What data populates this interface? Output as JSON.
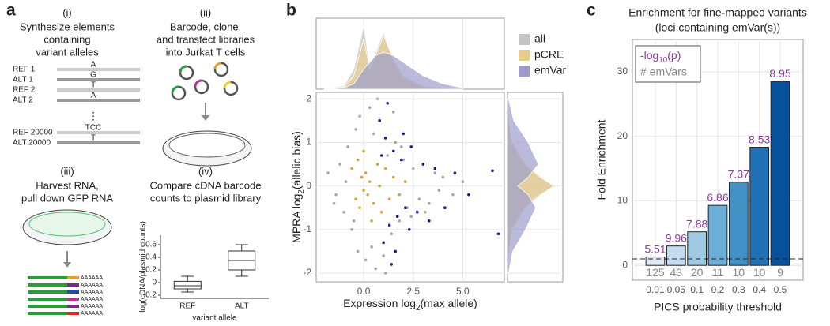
{
  "panel_labels": [
    "a",
    "b",
    "c"
  ],
  "panel_a": {
    "steps": [
      {
        "number": "(i)",
        "lines": [
          "Synthesize elements",
          "containing",
          "variant alleles"
        ]
      },
      {
        "number": "(ii)",
        "lines": [
          "Barcode, clone,",
          "and transfect libraries",
          "into Jurkat T cells"
        ]
      },
      {
        "number": "(iii)",
        "lines": [
          "Harvest RNA,",
          "pull down GFP RNA"
        ]
      },
      {
        "number": "(iv)",
        "lines": [
          "Compare cDNA barcode",
          "counts to plasmid library"
        ]
      }
    ],
    "sequences": [
      {
        "label": "REF 1",
        "base": "A"
      },
      {
        "label": "ALT 1",
        "base": "G"
      },
      {
        "label": "REF 2",
        "base": "T"
      },
      {
        "label": "ALT 2",
        "base": "A"
      },
      {
        "label": "REF 20000",
        "base": "TCC"
      },
      {
        "label": "ALT 20000",
        "base": "T"
      }
    ],
    "ellipsis": "⋮",
    "poly_a": "AAAAAA"
  },
  "chart_data": [
    {
      "type": "box",
      "ylabel": "log(cDNA/plasmid counts)",
      "xlabel": "variant allele",
      "categories": [
        "REF",
        "ALT"
      ],
      "boxes": [
        {
          "min": -0.15,
          "q1": -0.1,
          "median": -0.05,
          "q3": 0.02,
          "max": 0.1
        },
        {
          "min": 0.1,
          "q1": 0.2,
          "median": 0.35,
          "q3": 0.5,
          "max": 0.6
        }
      ],
      "ylim": [
        -0.25,
        0.75
      ],
      "yticks": [
        -0.2,
        0,
        0.2,
        0.4,
        0.6
      ]
    },
    {
      "type": "scatter",
      "xlabel": {
        "main": "Expression log",
        "sub": "2",
        "rest": "(max allele)"
      },
      "ylabel": {
        "main": "MPRA log",
        "sub": "2",
        "rest": "(allelic bias)"
      },
      "xlim": [
        -2.4,
        7.1
      ],
      "ylim": [
        -2.2,
        2.15
      ],
      "xticks": [
        {
          "value": 0,
          "label": "0.0"
        },
        2.5,
        {
          "value": 5,
          "label": "5.0"
        }
      ],
      "yticks": [
        -2,
        -1,
        0,
        1,
        2
      ],
      "grid": true,
      "density_lim": [
        0,
        1
      ],
      "top_density_x": [
        -2,
        -1,
        -0.5,
        0,
        0.3,
        0.6,
        1,
        1.5,
        2,
        3,
        4,
        5
      ],
      "side_density_y": [
        -2,
        -1.5,
        -1,
        -0.5,
        -0.2,
        0,
        0.2,
        0.5,
        1,
        1.5,
        2
      ],
      "series": [
        {
          "name": "all",
          "color": "#a8a8a8",
          "fill": "#c4c4c4",
          "x": [
            -1.8,
            -1.5,
            -1.2,
            -1.0,
            -0.8,
            -0.6,
            -0.4,
            -0.3,
            -0.2,
            0.1,
            0.3,
            0.4,
            0.5,
            0.6,
            0.8,
            1.0,
            1.2,
            1.4,
            1.6,
            1.8,
            2.0,
            2.2,
            2.5,
            2.8,
            3.0,
            3.3,
            3.6,
            4.0,
            4.5,
            5.0,
            -1.4,
            -0.9,
            -0.5,
            0.7,
            1.1,
            1.5,
            1.9,
            2.4,
            3.1,
            3.8
          ],
          "values": [
            0.3,
            -0.4,
            0.5,
            -0.6,
            0.9,
            -1.0,
            1.3,
            -1.5,
            1.6,
            -1.7,
            1.8,
            -1.4,
            1.2,
            -1.9,
            1.5,
            -1.6,
            0.7,
            -1.1,
            1.0,
            -0.8,
            0.6,
            -0.5,
            0.4,
            -0.3,
            0.5,
            -0.4,
            0.3,
            0.2,
            -0.2,
            0.1,
            -0.2,
            0.1,
            -0.8,
            2.0,
            -2.0,
            1.7,
            0.9,
            -0.7,
            -0.6,
            -0.1
          ],
          "top_density": [
            0,
            0.05,
            0.3,
            0.95,
            0.35,
            0.55,
            0.85,
            0.4,
            0.15,
            0.05,
            0.02,
            0
          ],
          "side_density": [
            0,
            0.02,
            0.08,
            0.3,
            0.6,
            0.95,
            0.6,
            0.3,
            0.08,
            0.02,
            0
          ]
        },
        {
          "name": "pCRE",
          "color": "#d6a834",
          "fill": "#e8cc8a",
          "x": [
            -0.6,
            -0.4,
            -0.3,
            -0.2,
            -0.1,
            0.0,
            0.1,
            0.2,
            0.3,
            0.5,
            0.7,
            0.9,
            1.1,
            1.3,
            1.5,
            1.8,
            2.1,
            0.0,
            0.4,
            0.8
          ],
          "values": [
            0.4,
            -0.3,
            0.6,
            -0.5,
            0.2,
            -0.1,
            0.3,
            -0.2,
            0.1,
            -0.4,
            0.5,
            -0.6,
            0.4,
            -0.3,
            0.2,
            -0.2,
            0.1,
            0.8,
            -0.8,
            0.0
          ],
          "top_density": [
            0,
            0.03,
            0.2,
            0.75,
            0.3,
            0.5,
            0.8,
            0.45,
            0.2,
            0.05,
            0.02,
            0
          ],
          "side_density": [
            0,
            0.03,
            0.1,
            0.35,
            0.65,
            0.9,
            0.65,
            0.35,
            0.1,
            0.03,
            0
          ]
        },
        {
          "name": "emVar",
          "color": "#1c1c8a",
          "fill": "#9c9ccc",
          "x": [
            0.8,
            1.0,
            1.1,
            1.3,
            1.5,
            1.7,
            1.9,
            2.1,
            2.4,
            2.7,
            3.0,
            3.3,
            3.6,
            4.1,
            4.6,
            5.3,
            6.5,
            6.8,
            1.2,
            1.6,
            2.0,
            2.3,
            0.9,
            1.4
          ],
          "values": [
            1.5,
            -1.3,
            1.1,
            -0.9,
            0.8,
            -0.7,
            0.6,
            -0.5,
            0.9,
            -0.6,
            0.5,
            -0.8,
            0.4,
            -0.5,
            0.3,
            -0.2,
            0.35,
            -1.1,
            1.9,
            -1.5,
            1.2,
            -1.0,
            0.7,
            -1.8
          ],
          "top_density": [
            0,
            0.02,
            0.08,
            0.3,
            0.4,
            0.5,
            0.55,
            0.5,
            0.4,
            0.2,
            0.08,
            0.02
          ],
          "side_density": [
            0.02,
            0.1,
            0.35,
            0.55,
            0.4,
            0.2,
            0.4,
            0.6,
            0.4,
            0.12,
            0.02
          ]
        }
      ]
    },
    {
      "type": "bar",
      "title": [
        "Enrichment for fine-mapped variants",
        "(loci containing emVar(s))"
      ],
      "ylabel": "Fold Enrichment",
      "xlabel": "PICS probability threshold",
      "categories": [
        "0.01",
        "0.05",
        "0.1",
        "0.2",
        "0.3",
        "0.4",
        "0.5"
      ],
      "values": [
        1.3,
        3.0,
        5.2,
        9.3,
        12.9,
        18.3,
        28.5
      ],
      "colors": [
        "#deebf7",
        "#c6dbef",
        "#9ecae1",
        "#6baed6",
        "#4292c6",
        "#2171b5",
        "#08519c"
      ],
      "neg_log10_p": [
        5.51,
        9.96,
        7.88,
        6.86,
        7.37,
        8.53,
        8.95
      ],
      "n_emvars": [
        125,
        43,
        20,
        11,
        10,
        10,
        9
      ],
      "reference_line": 1,
      "legend": {
        "p_label": {
          "main": "-log",
          "sub": "10",
          "rest": "(p)"
        },
        "count_label": "# emVars"
      },
      "ylim": [
        -2.3,
        35
      ],
      "yticks": [
        0,
        10,
        20,
        30
      ],
      "grid": true
    }
  ]
}
